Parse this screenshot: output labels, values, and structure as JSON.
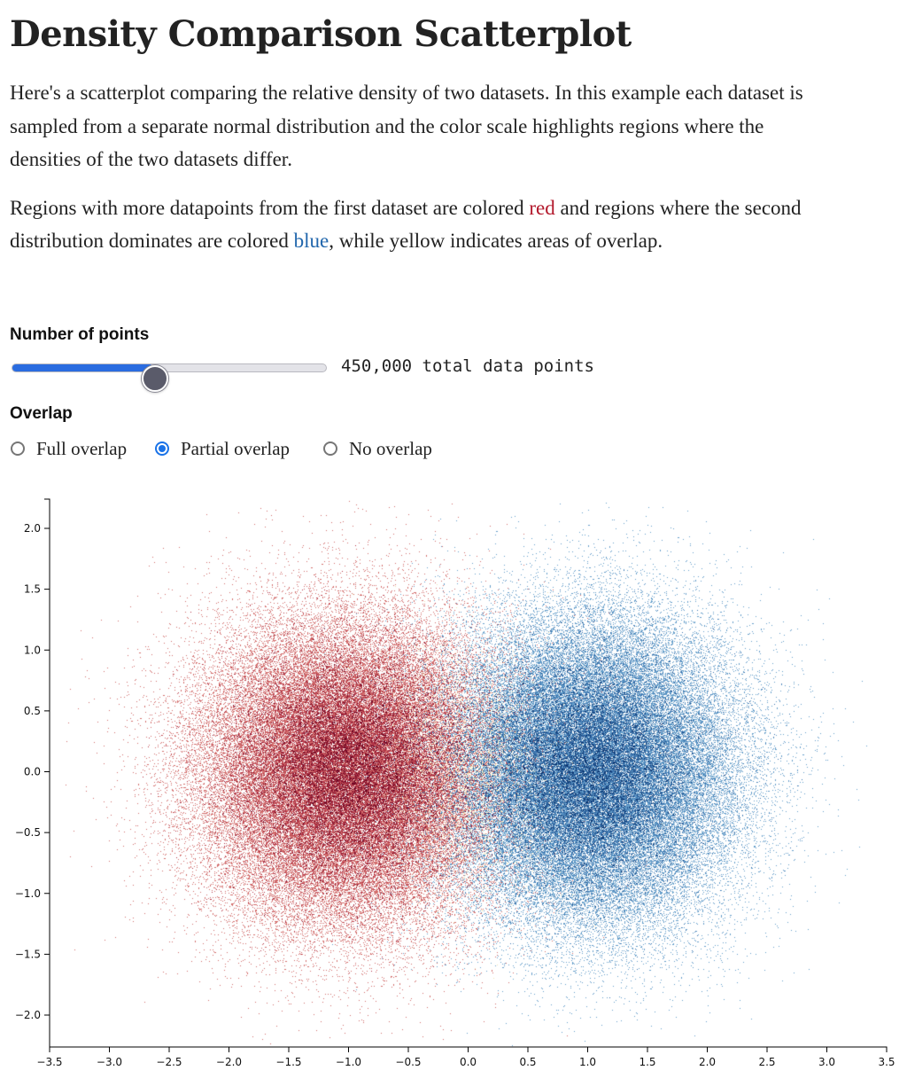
{
  "header": {
    "title": "Density Comparison Scatterplot"
  },
  "intro": {
    "para1": "Here's a scatterplot comparing the relative density of two datasets. In this example each dataset is sampled from a separate normal distribution and the color scale highlights regions where the densities of the two datasets differ.",
    "para2_before_red": "Regions with more datapoints from the first dataset are colored ",
    "red_word": "red",
    "para2_between": " and regions where the second distribution dominates are colored ",
    "blue_word": "blue",
    "para2_after": ", while yellow indicates areas of overlap."
  },
  "controls": {
    "points_label": "Number of points",
    "points_value": 450000,
    "points_readout": "450,000 total data points",
    "slider_fraction": 0.45,
    "overlap_label": "Overlap",
    "overlap_options": [
      {
        "label": "Full overlap",
        "checked": false
      },
      {
        "label": "Partial overlap",
        "checked": true
      },
      {
        "label": "No overlap",
        "checked": false
      }
    ]
  },
  "colors": {
    "red_word": "#b2182b",
    "blue_word": "#2166ac",
    "slider_fill": "#2a6ce0",
    "radio_checked": "#1a73e8",
    "dataset1_dense": "#67001f",
    "dataset2_dense": "#08306b"
  },
  "chart_data": {
    "type": "scatter",
    "title": "",
    "xlabel": "",
    "ylabel": "",
    "xlim": [
      -3.5,
      3.5
    ],
    "ylim": [
      -2.25,
      2.25
    ],
    "x_ticks": [
      "−3.5",
      "−3.0",
      "−2.5",
      "−2.0",
      "−1.5",
      "−1.0",
      "−0.5",
      "0.0",
      "0.5",
      "1.0",
      "1.5",
      "2.0",
      "2.5",
      "3.0",
      "3.5"
    ],
    "y_ticks": [
      "2.0",
      "1.5",
      "1.0",
      "0.5",
      "0.0",
      "−0.5",
      "−1.0",
      "−1.5",
      "−2.0"
    ],
    "grid": false,
    "series": [
      {
        "name": "",
        "distribution": "normal",
        "mean": [
          -1.0,
          0.0
        ],
        "sd": [
          0.6,
          0.6
        ],
        "color": "#67001f"
      },
      {
        "name": "",
        "distribution": "normal",
        "mean": [
          1.0,
          0.0
        ],
        "sd": [
          0.6,
          0.6
        ],
        "color": "#08306b"
      }
    ]
  }
}
